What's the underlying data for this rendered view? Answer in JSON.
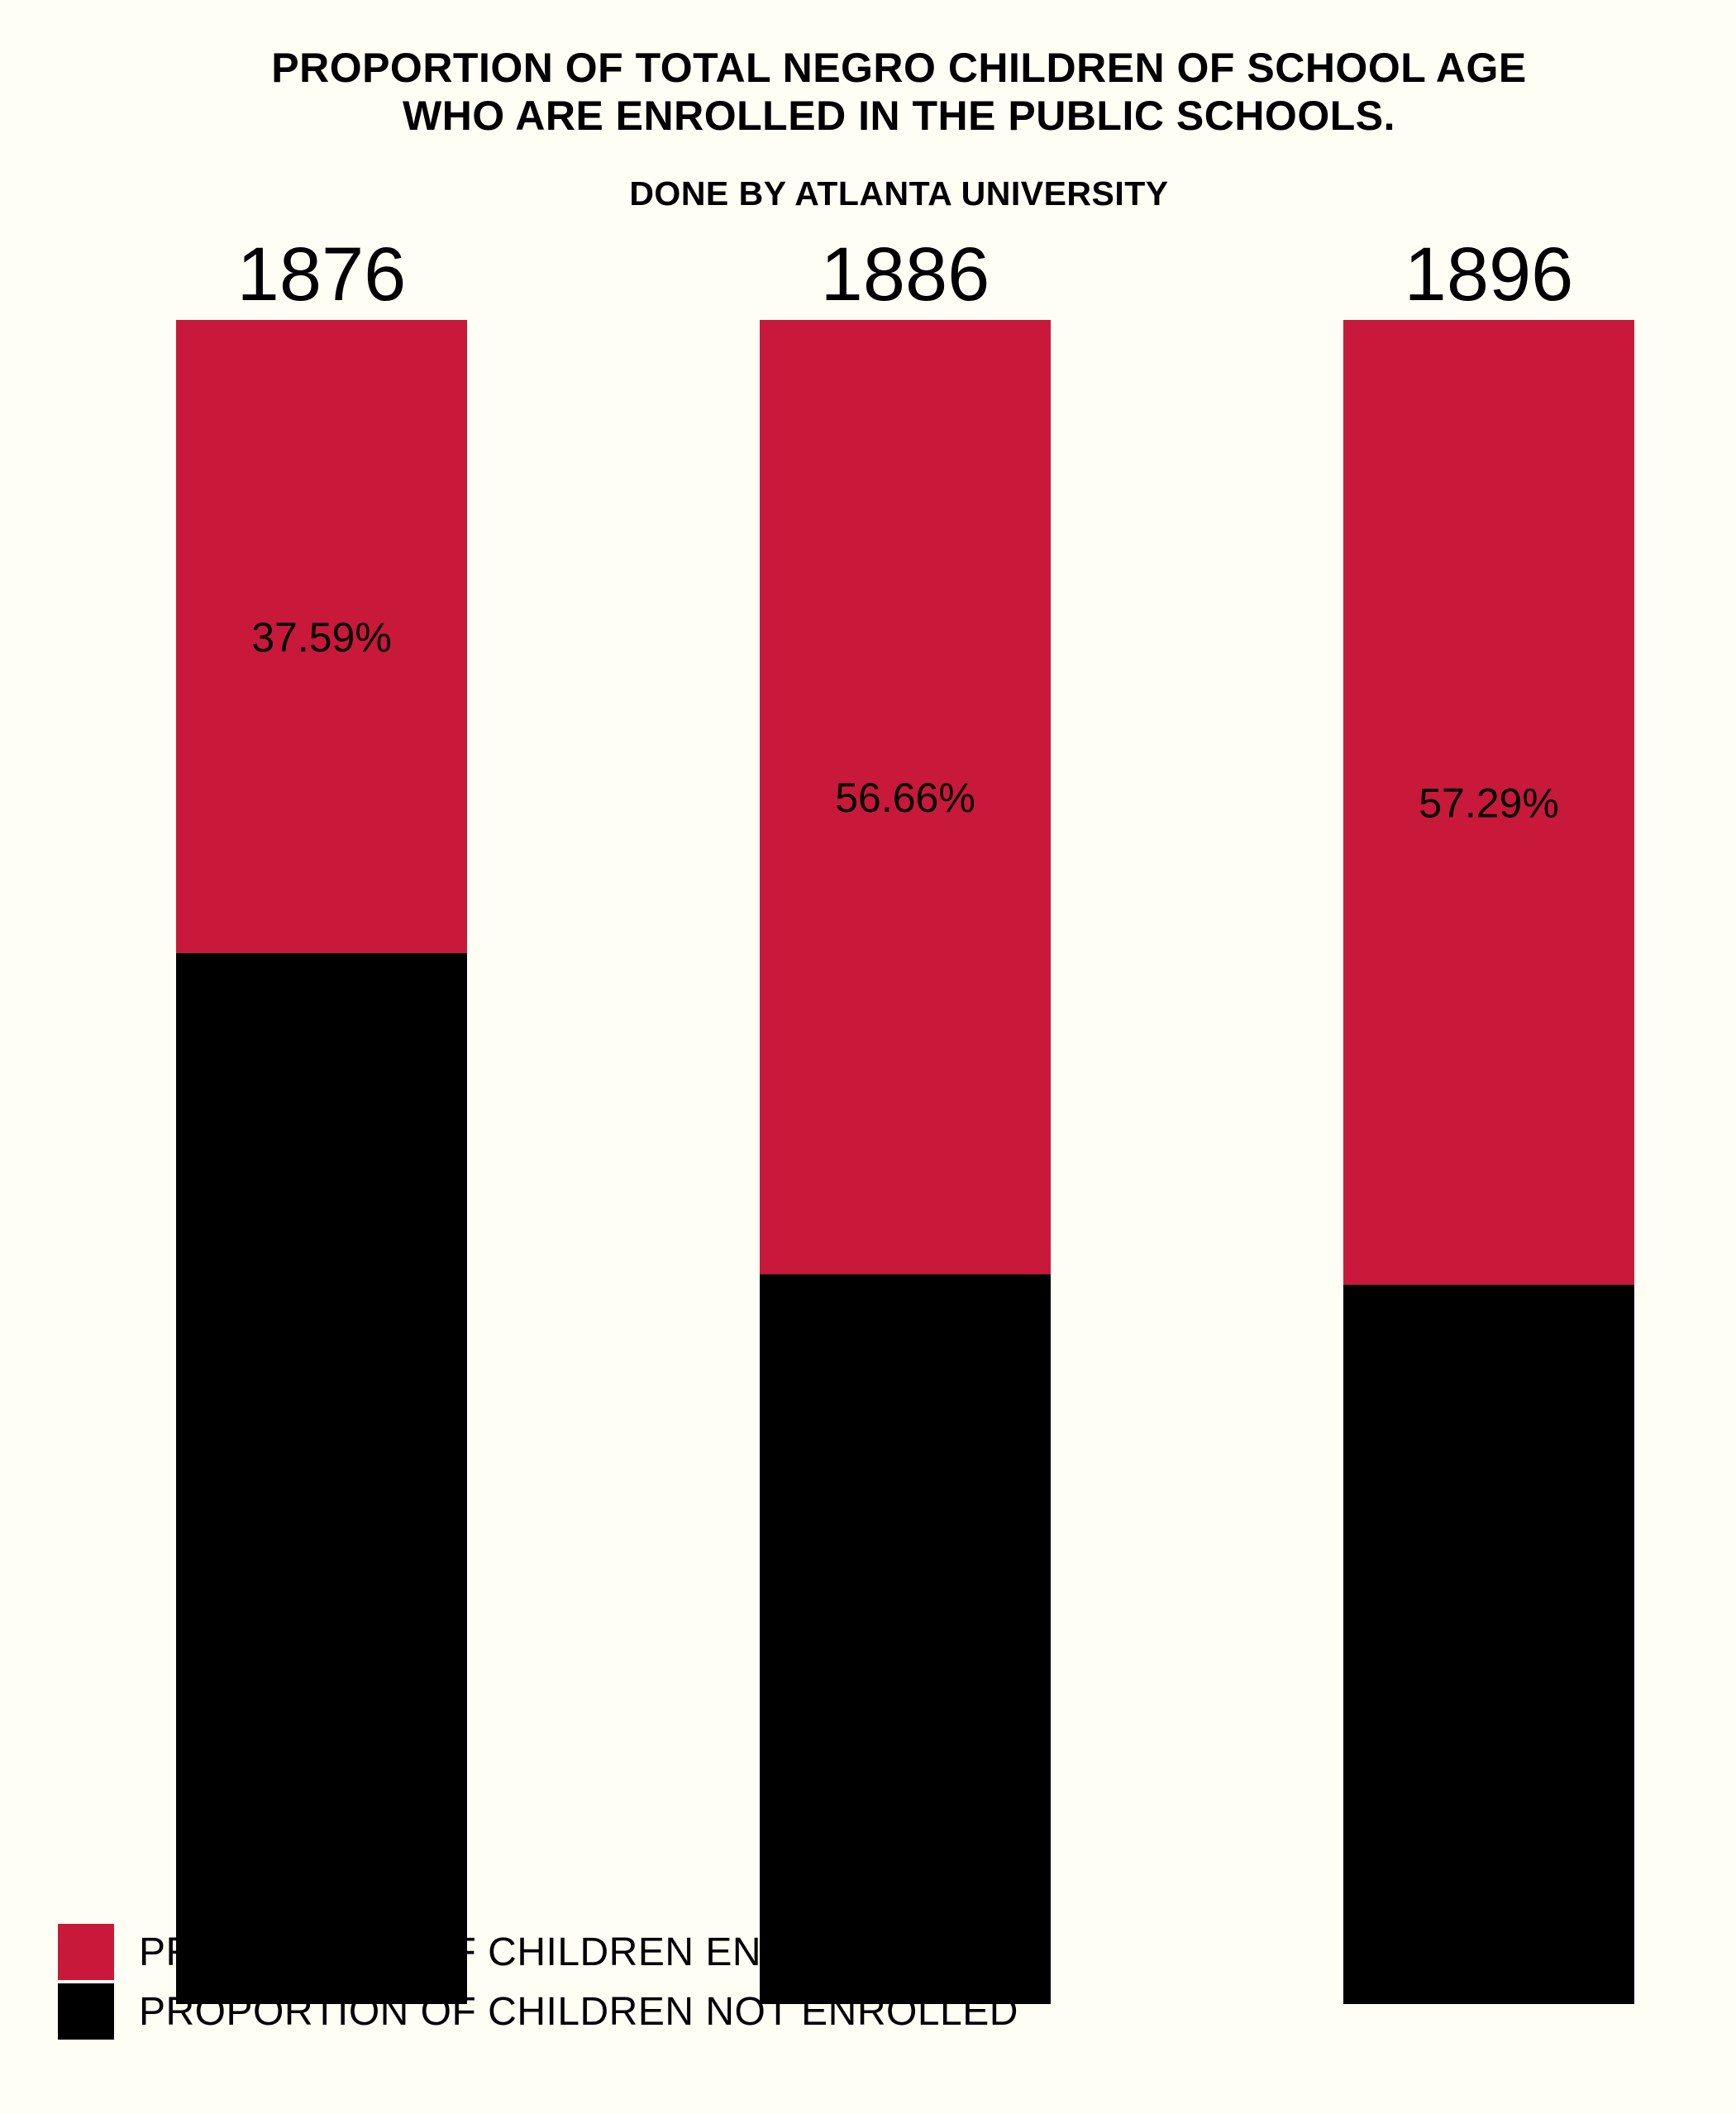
{
  "chart_data": {
    "type": "bar",
    "title_lines": [
      "PROPORTION OF TOTAL NEGRO CHILDREN OF SCHOOL AGE",
      "WHO ARE ENROLLED IN THE PUBLIC SCHOOLS."
    ],
    "subtitle": "DONE BY ATLANTA UNIVERSITY",
    "categories": [
      "1876",
      "1886",
      "1896"
    ],
    "series": [
      {
        "name": "PROPORTION OF CHILDREN ENROLLED",
        "color": "#C8193A",
        "values": [
          37.59,
          56.66,
          57.29
        ],
        "labels": [
          "37.59%",
          "56.66%",
          "57.29%"
        ]
      },
      {
        "name": "PROPORTION OF CHILDREN NOT ENROLLED",
        "color": "#000000",
        "values": [
          62.41,
          43.34,
          42.71
        ]
      }
    ],
    "stacked": true,
    "legend_position": "bottom-left"
  }
}
